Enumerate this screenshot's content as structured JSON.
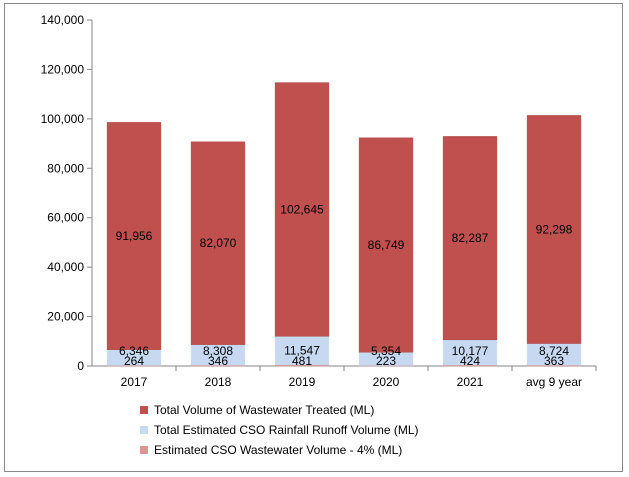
{
  "chart_data": {
    "type": "bar",
    "stacked": true,
    "categories": [
      "2017",
      "2018",
      "2019",
      "2020",
      "2021",
      "avg 9 year"
    ],
    "series": [
      {
        "name": "Estimated CSO Wastewater Volume - 4% (ML)",
        "color": "#d99694",
        "values": [
          264,
          346,
          481,
          223,
          424,
          363
        ]
      },
      {
        "name": "Total Estimated CSO Rainfall Runoff Volume (ML)",
        "color": "#c6d9f1",
        "values": [
          6346,
          8308,
          11547,
          5354,
          10177,
          8724
        ]
      },
      {
        "name": "Total Volume of Wastewater Treated (ML)",
        "color": "#c0504d",
        "values": [
          91956,
          82070,
          102645,
          86749,
          82287,
          92298
        ]
      }
    ],
    "value_labels": {
      "Estimated CSO Wastewater Volume - 4% (ML)": [
        "264",
        "346",
        "481",
        "223",
        "424",
        "363"
      ],
      "Total Estimated CSO Rainfall Runoff Volume (ML)": [
        "6,346",
        "8,308",
        "11,547",
        "5,354",
        "10,177",
        "8,724"
      ],
      "Total Volume of Wastewater Treated (ML)": [
        "91,956",
        "82,070",
        "102,645",
        "86,749",
        "82,287",
        "92,298"
      ]
    },
    "ylim": [
      0,
      140000
    ],
    "yticks": [
      0,
      20000,
      40000,
      60000,
      80000,
      100000,
      120000,
      140000
    ],
    "ytick_labels": [
      "0",
      "20,000",
      "40,000",
      "60,000",
      "80,000",
      "100,000",
      "120,000",
      "140,000"
    ],
    "legend_position": "bottom",
    "legend_order": [
      "Total Volume of Wastewater Treated (ML)",
      "Total Estimated CSO Rainfall Runoff Volume (ML)",
      "Estimated CSO Wastewater Volume - 4% (ML)"
    ],
    "grid": false
  }
}
